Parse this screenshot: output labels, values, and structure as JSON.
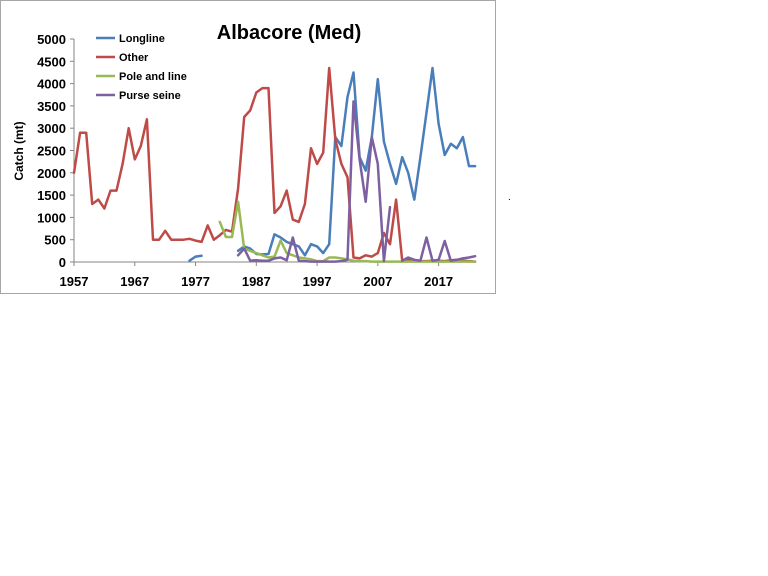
{
  "chart_data": {
    "type": "line",
    "title": "Albacore (Med)",
    "xlabel": "",
    "ylabel": "Catch (mt)",
    "xlim": [
      1957,
      2022
    ],
    "ylim": [
      0,
      5000
    ],
    "yticks": [
      0,
      500,
      1000,
      1500,
      2000,
      2500,
      3000,
      3500,
      4000,
      4500,
      5000
    ],
    "xticks": [
      1957,
      1967,
      1977,
      1987,
      1997,
      2007,
      2017
    ],
    "grid": false,
    "legend": "top-left",
    "series": [
      {
        "name": "Longline",
        "color": "#4a7ebb",
        "points": [
          [
            1976,
            30
          ],
          [
            1977,
            120
          ],
          [
            1978,
            140
          ],
          [
            null,
            null
          ],
          [
            1984,
            250
          ],
          [
            1985,
            350
          ],
          [
            1986,
            300
          ],
          [
            1987,
            180
          ],
          [
            1988,
            170
          ],
          [
            1989,
            180
          ],
          [
            1990,
            620
          ],
          [
            1991,
            550
          ],
          [
            1992,
            450
          ],
          [
            1993,
            400
          ],
          [
            1994,
            350
          ],
          [
            1995,
            150
          ],
          [
            1996,
            400
          ],
          [
            1997,
            350
          ],
          [
            1998,
            200
          ],
          [
            1999,
            400
          ],
          [
            2000,
            2800
          ],
          [
            2001,
            2600
          ],
          [
            2002,
            3700
          ],
          [
            2003,
            4250
          ],
          [
            2004,
            2350
          ],
          [
            2005,
            2050
          ],
          [
            2006,
            2800
          ],
          [
            2007,
            4100
          ],
          [
            2008,
            2700
          ],
          [
            2009,
            2200
          ],
          [
            2010,
            1750
          ],
          [
            2011,
            2350
          ],
          [
            2012,
            2000
          ],
          [
            2013,
            1400
          ],
          [
            2014,
            2350
          ],
          [
            2015,
            3350
          ],
          [
            2016,
            4350
          ],
          [
            2017,
            3100
          ],
          [
            2018,
            2400
          ],
          [
            2019,
            2650
          ],
          [
            2020,
            2550
          ],
          [
            2021,
            2800
          ],
          [
            2022,
            2150
          ],
          [
            2023,
            2150
          ]
        ]
      },
      {
        "name": "Other",
        "color": "#be4b48",
        "points": [
          [
            1957,
            2000
          ],
          [
            1958,
            2900
          ],
          [
            1959,
            2900
          ],
          [
            1960,
            1300
          ],
          [
            1961,
            1400
          ],
          [
            1962,
            1200
          ],
          [
            1963,
            1600
          ],
          [
            1964,
            1600
          ],
          [
            1965,
            2200
          ],
          [
            1966,
            3000
          ],
          [
            1967,
            2300
          ],
          [
            1968,
            2600
          ],
          [
            1969,
            3200
          ],
          [
            1970,
            500
          ],
          [
            1971,
            500
          ],
          [
            1972,
            700
          ],
          [
            1973,
            500
          ],
          [
            1974,
            500
          ],
          [
            1975,
            500
          ],
          [
            1976,
            520
          ],
          [
            1977,
            480
          ],
          [
            1978,
            450
          ],
          [
            1979,
            820
          ],
          [
            1980,
            500
          ],
          [
            1981,
            600
          ],
          [
            1982,
            720
          ],
          [
            1983,
            680
          ],
          [
            1984,
            1650
          ],
          [
            1985,
            3250
          ],
          [
            1986,
            3400
          ],
          [
            1987,
            3800
          ],
          [
            1988,
            3900
          ],
          [
            1989,
            3900
          ],
          [
            1990,
            1100
          ],
          [
            1991,
            1250
          ],
          [
            1992,
            1600
          ],
          [
            1993,
            950
          ],
          [
            1994,
            900
          ],
          [
            1995,
            1300
          ],
          [
            1996,
            2550
          ],
          [
            1997,
            2200
          ],
          [
            1998,
            2450
          ],
          [
            1999,
            4350
          ],
          [
            2000,
            2750
          ],
          [
            2001,
            2200
          ],
          [
            2002,
            1900
          ],
          [
            2003,
            100
          ],
          [
            2004,
            80
          ],
          [
            2005,
            150
          ],
          [
            2006,
            120
          ],
          [
            2007,
            200
          ],
          [
            2008,
            650
          ],
          [
            2009,
            400
          ],
          [
            2010,
            1400
          ],
          [
            2011,
            30
          ],
          [
            2012,
            50
          ],
          [
            2013,
            30
          ],
          [
            2014,
            20
          ],
          [
            2015,
            20
          ],
          [
            2016,
            30
          ],
          [
            2017,
            30
          ],
          [
            2018,
            20
          ],
          [
            2019,
            40
          ],
          [
            2020,
            50
          ],
          [
            2021,
            30
          ],
          [
            2022,
            20
          ],
          [
            2023,
            10
          ]
        ]
      },
      {
        "name": "Pole and line",
        "color": "#98b954",
        "points": [
          [
            1981,
            900
          ],
          [
            1982,
            560
          ],
          [
            1983,
            560
          ],
          [
            1984,
            1350
          ],
          [
            1985,
            300
          ],
          [
            1986,
            250
          ],
          [
            1987,
            200
          ],
          [
            1988,
            150
          ],
          [
            1989,
            100
          ],
          [
            1990,
            120
          ],
          [
            1991,
            480
          ],
          [
            1992,
            200
          ],
          [
            1993,
            150
          ],
          [
            1994,
            100
          ],
          [
            1995,
            80
          ],
          [
            1996,
            60
          ],
          [
            1997,
            20
          ],
          [
            1998,
            20
          ],
          [
            1999,
            100
          ],
          [
            2000,
            100
          ],
          [
            2001,
            80
          ],
          [
            2002,
            60
          ],
          [
            2003,
            30
          ],
          [
            2004,
            20
          ],
          [
            2005,
            20
          ],
          [
            2006,
            10
          ],
          [
            2007,
            10
          ],
          [
            2008,
            10
          ],
          [
            2009,
            10
          ],
          [
            2010,
            10
          ],
          [
            2011,
            10
          ],
          [
            2012,
            10
          ],
          [
            2013,
            10
          ],
          [
            2014,
            10
          ],
          [
            2015,
            10
          ],
          [
            2016,
            10
          ],
          [
            2017,
            10
          ],
          [
            2018,
            10
          ],
          [
            2019,
            10
          ],
          [
            2020,
            10
          ],
          [
            2021,
            10
          ],
          [
            2022,
            10
          ],
          [
            2023,
            10
          ]
        ]
      },
      {
        "name": "Purse seine",
        "color": "#7d60a0",
        "points": [
          [
            1984,
            150
          ],
          [
            1985,
            300
          ],
          [
            1986,
            30
          ],
          [
            1987,
            40
          ],
          [
            1988,
            30
          ],
          [
            1989,
            30
          ],
          [
            1990,
            80
          ],
          [
            1991,
            100
          ],
          [
            1992,
            40
          ],
          [
            1993,
            550
          ],
          [
            1994,
            30
          ],
          [
            1995,
            20
          ],
          [
            1996,
            10
          ],
          [
            1997,
            10
          ],
          [
            1998,
            10
          ],
          [
            1999,
            10
          ],
          [
            2000,
            10
          ],
          [
            2001,
            20
          ],
          [
            2002,
            50
          ],
          [
            2003,
            3600
          ],
          [
            2004,
            2300
          ],
          [
            2005,
            1350
          ],
          [
            2006,
            2800
          ],
          [
            2007,
            2200
          ],
          [
            2008,
            20
          ],
          [
            2009,
            1230
          ],
          [
            null,
            null
          ],
          [
            2011,
            30
          ],
          [
            2012,
            100
          ],
          [
            2013,
            50
          ],
          [
            2014,
            30
          ],
          [
            2015,
            550
          ],
          [
            2016,
            30
          ],
          [
            2017,
            50
          ],
          [
            2018,
            470
          ],
          [
            2019,
            30
          ],
          [
            2020,
            50
          ],
          [
            2021,
            80
          ],
          [
            2022,
            100
          ],
          [
            2023,
            130
          ]
        ]
      }
    ]
  }
}
